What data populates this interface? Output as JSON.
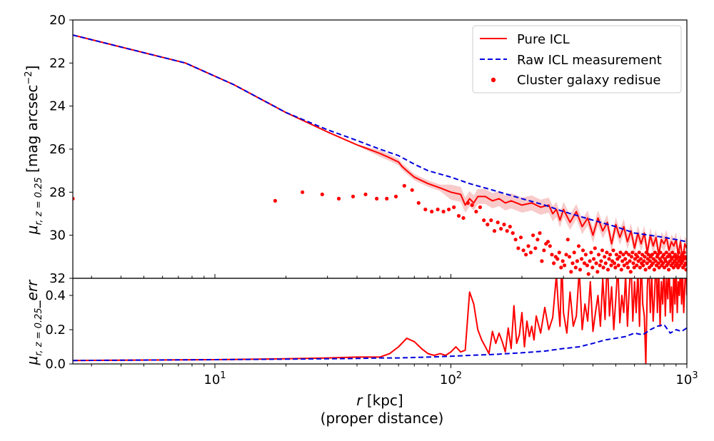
{
  "colors": {
    "pure_icl": "#ff0000",
    "raw_icl": "#0000dd",
    "residue": "#ff0000",
    "band": "#f4a6a6"
  },
  "chart_data": [
    {
      "type": "line",
      "panel": "top",
      "x_scale": "log",
      "y_inverted": true,
      "xlim": [
        2.5,
        1000
      ],
      "ylim": [
        20,
        32
      ],
      "ylabel_main": "μ",
      "ylabel_sub": "r, z = 0.25",
      "ylabel_unit_pre": " [mag arcsec",
      "ylabel_unit_sup": "−2",
      "ylabel_unit_post": "]",
      "y_ticks": [
        "20",
        "22",
        "24",
        "26",
        "28",
        "30",
        "32"
      ],
      "legend": {
        "placement": "top-right",
        "entries": [
          "Pure ICL",
          "Raw ICL measurement",
          "Cluster galaxy redisue"
        ]
      },
      "series": [
        {
          "name": "Pure ICL",
          "style": "solid",
          "x": [
            2.5,
            7.5,
            12,
            20,
            30,
            40,
            50,
            55,
            60,
            62,
            65,
            70,
            80,
            90,
            100,
            110,
            115,
            120,
            125,
            130,
            140,
            150,
            160,
            170,
            180,
            190,
            200,
            220,
            240,
            260,
            270,
            280,
            290,
            300,
            320,
            340,
            360,
            380,
            400,
            420,
            440,
            460,
            480,
            500,
            520,
            540,
            560,
            580,
            600,
            620,
            640,
            660,
            680,
            700,
            720,
            740,
            760,
            780,
            800,
            820,
            840,
            860,
            880,
            900,
            920,
            940,
            960,
            980,
            1000
          ],
          "y": [
            20.7,
            22.0,
            23.0,
            24.3,
            25.2,
            25.8,
            26.2,
            26.4,
            26.6,
            26.8,
            27.0,
            27.3,
            27.6,
            27.8,
            28.0,
            28.1,
            28.6,
            28.3,
            28.5,
            28.2,
            28.2,
            28.4,
            28.3,
            28.5,
            28.4,
            28.5,
            28.6,
            28.5,
            28.7,
            28.6,
            29.0,
            28.8,
            29.3,
            28.8,
            29.4,
            28.9,
            29.6,
            29.2,
            30.0,
            29.2,
            29.8,
            29.4,
            30.4,
            29.5,
            30.1,
            29.6,
            30.3,
            29.8,
            30.6,
            29.9,
            30.4,
            29.9,
            30.8,
            30.0,
            30.5,
            30.1,
            30.9,
            30.2,
            30.4,
            30.1,
            30.7,
            30.3,
            30.5,
            30.2,
            30.9,
            30.3,
            31.2,
            30.4,
            30.6
          ]
        },
        {
          "name": "Raw ICL measurement",
          "style": "dashed",
          "x": [
            2.5,
            7.5,
            12,
            20,
            30,
            40,
            50,
            60,
            70,
            80,
            100,
            120,
            150,
            200,
            250,
            300,
            400,
            500,
            600,
            700,
            800,
            900,
            1000
          ],
          "y": [
            20.7,
            22.0,
            23.0,
            24.3,
            25.1,
            25.6,
            26.0,
            26.3,
            26.7,
            27.0,
            27.3,
            27.6,
            27.9,
            28.3,
            28.6,
            28.9,
            29.3,
            29.6,
            29.9,
            30.0,
            30.1,
            30.2,
            30.3
          ]
        }
      ],
      "scatter": {
        "name": "Cluster galaxy redisue",
        "x": [
          2.5,
          18,
          23.5,
          28.5,
          33.5,
          38.5,
          43.5,
          48.5,
          53.5,
          58.5,
          63.5,
          68.5,
          73,
          78,
          83,
          88,
          93,
          98,
          103,
          108,
          113,
          118,
          123,
          128,
          133,
          138,
          143,
          148,
          153,
          158,
          163,
          168,
          173,
          178,
          183,
          188,
          193,
          198,
          203,
          208,
          213,
          218,
          223,
          228,
          233,
          238,
          243,
          248,
          253,
          258,
          263,
          268,
          273,
          278,
          283,
          288,
          293,
          298,
          303,
          308,
          313,
          318,
          323,
          328,
          333,
          338,
          343,
          348,
          353,
          358,
          363,
          368,
          373,
          378,
          383,
          388,
          393,
          398,
          403,
          408,
          413,
          418,
          423,
          428,
          433,
          438,
          443,
          448,
          453,
          458,
          463,
          468,
          473,
          478,
          483,
          488,
          493,
          498,
          503,
          508,
          513,
          518,
          523,
          528,
          533,
          538,
          543,
          548,
          553,
          558,
          563,
          568,
          573,
          578,
          583,
          588,
          593,
          598,
          603,
          608,
          613,
          618,
          623,
          628,
          633,
          638,
          643,
          648,
          653,
          658,
          663,
          668,
          673,
          678,
          683,
          688,
          693,
          698,
          703,
          708,
          713,
          718,
          723,
          728,
          733,
          738,
          743,
          748,
          753,
          758,
          763,
          768,
          773,
          778,
          783,
          788,
          793,
          798,
          803,
          808,
          813,
          818,
          823,
          828,
          833,
          838,
          843,
          848,
          853,
          858,
          863,
          868,
          873,
          878,
          883,
          888,
          893,
          898,
          903,
          908,
          913,
          918,
          923,
          928,
          933,
          938,
          943,
          948,
          953,
          958,
          963,
          968,
          973,
          978,
          983,
          988,
          993,
          998
        ],
        "y": [
          28.3,
          28.4,
          28.0,
          28.1,
          28.3,
          28.2,
          28.1,
          28.3,
          28.3,
          28.2,
          27.7,
          27.9,
          28.5,
          28.8,
          28.9,
          28.8,
          28.9,
          28.8,
          28.7,
          29.1,
          29.2,
          28.5,
          28.6,
          28.9,
          28.7,
          29.3,
          29.5,
          29.3,
          29.8,
          29.4,
          29.7,
          29.5,
          29.8,
          29.6,
          29.9,
          30.2,
          30.6,
          30.1,
          30.7,
          30.9,
          30.5,
          30.8,
          30.0,
          30.6,
          30.2,
          29.9,
          31.2,
          30.7,
          30.4,
          30.3,
          30.5,
          30.9,
          31.3,
          31.0,
          31.1,
          30.8,
          31.5,
          31.2,
          31.4,
          30.9,
          30.2,
          31.0,
          31.7,
          31.3,
          30.8,
          31.5,
          31.2,
          30.5,
          31.6,
          31.1,
          30.7,
          31.3,
          30.9,
          31.4,
          31.8,
          31.2,
          30.8,
          31.5,
          31.1,
          30.6,
          31.3,
          31.7,
          30.9,
          31.4,
          31.2,
          30.7,
          31.5,
          31.0,
          31.3,
          30.8,
          31.6,
          31.1,
          30.9,
          31.4,
          31.2,
          30.7,
          31.3,
          31.5,
          30.9,
          31.1,
          31.4,
          31.0,
          30.8,
          31.6,
          31.2,
          30.9,
          31.4,
          31.1,
          30.8,
          31.3,
          31.5,
          30.9,
          31.2,
          31.7,
          31.0,
          30.8,
          31.3,
          31.5,
          31.1,
          30.9,
          31.4,
          31.0,
          31.2,
          30.8,
          31.5,
          31.1,
          31.3,
          30.9,
          31.4,
          31.2,
          31.0,
          31.6,
          30.8,
          31.3,
          31.1,
          30.9,
          31.5,
          31.2,
          31.0,
          31.4,
          30.9,
          31.3,
          31.1,
          31.6,
          30.8,
          31.2,
          31.4,
          31.0,
          30.9,
          31.3,
          31.5,
          31.1,
          30.8,
          31.2,
          31.4,
          31.0,
          31.3,
          30.9,
          31.5,
          31.1,
          31.2,
          30.8,
          31.4,
          31.0,
          31.3,
          31.6,
          30.9,
          31.2,
          31.0,
          31.4,
          31.1,
          30.8,
          31.3,
          31.5,
          31.0,
          31.2,
          30.9,
          31.4,
          31.1,
          31.3,
          31.0,
          31.5,
          30.8,
          31.2,
          31.4,
          31.1,
          31.0,
          31.3,
          30.9,
          31.2,
          31.5,
          31.1,
          30.8,
          31.4,
          31.0,
          31.3,
          31.6,
          31.1
        ]
      }
    },
    {
      "type": "line",
      "panel": "bottom",
      "x_scale": "log",
      "xlim": [
        2.5,
        1000
      ],
      "ylim": [
        0.0,
        0.5
      ],
      "ylabel_main": "μ",
      "ylabel_sub": "r, z = 0.25",
      "ylabel_suffix": "_err",
      "y_ticks": [
        "0.0",
        "0.2",
        "0.4"
      ],
      "x_ticks": [
        {
          "base": "10",
          "exp": "1"
        },
        {
          "base": "10",
          "exp": "2"
        },
        {
          "base": "10",
          "exp": "3"
        }
      ],
      "xlabel_var": "r",
      "xlabel_unit": " [kpc]",
      "xlabel_line2": "(proper distance)",
      "series": [
        {
          "name": "Pure ICL",
          "style": "solid",
          "x": [
            2.5,
            10,
            20,
            30,
            40,
            50,
            55,
            60,
            65,
            70,
            75,
            80,
            85,
            90,
            95,
            100,
            105,
            110,
            115,
            120,
            125,
            130,
            135,
            140,
            145,
            150,
            155,
            160,
            165,
            170,
            175,
            180,
            185,
            190,
            195,
            200,
            205,
            210,
            215,
            220,
            225,
            230,
            240,
            250,
            260,
            270,
            280,
            285,
            290,
            295,
            300,
            310,
            320,
            330,
            340,
            350,
            360,
            370,
            380,
            390,
            400,
            410,
            420,
            430,
            440,
            450,
            460,
            470,
            480,
            490,
            500,
            510,
            520,
            530,
            540,
            550,
            560,
            570,
            580,
            590,
            600,
            610,
            620,
            630,
            640,
            650,
            660,
            670,
            680,
            690,
            700,
            710,
            720,
            730,
            740,
            750,
            760,
            770,
            780,
            790,
            800,
            810,
            820,
            830,
            840,
            850,
            860,
            870,
            880,
            890,
            900,
            910,
            920,
            930,
            940,
            950,
            960,
            970,
            980,
            990,
            1000
          ],
          "y": [
            0.02,
            0.025,
            0.03,
            0.035,
            0.04,
            0.04,
            0.06,
            0.1,
            0.15,
            0.13,
            0.09,
            0.06,
            0.05,
            0.06,
            0.05,
            0.07,
            0.1,
            0.07,
            0.08,
            0.42,
            0.35,
            0.2,
            0.14,
            0.1,
            0.06,
            0.19,
            0.12,
            0.18,
            0.13,
            0.07,
            0.21,
            0.09,
            0.34,
            0.12,
            0.17,
            0.3,
            0.1,
            0.25,
            0.16,
            0.22,
            0.14,
            0.28,
            0.18,
            0.33,
            0.2,
            0.27,
            0.52,
            0.35,
            0.22,
            0.6,
            0.3,
            0.18,
            0.42,
            0.22,
            0.28,
            0.55,
            0.2,
            0.35,
            0.25,
            0.48,
            0.19,
            0.3,
            0.4,
            0.22,
            0.5,
            0.26,
            0.62,
            0.28,
            0.45,
            0.2,
            0.38,
            0.58,
            0.24,
            0.4,
            0.3,
            0.52,
            0.22,
            0.44,
            0.6,
            0.25,
            0.48,
            0.3,
            0.55,
            0.22,
            0.62,
            0.35,
            0.28,
            0.0,
            0.45,
            0.6,
            0.3,
            0.52,
            0.25,
            0.4,
            0.65,
            0.3,
            0.55,
            0.22,
            0.48,
            0.35,
            0.6,
            0.28,
            0.5,
            0.38,
            0.62,
            0.3,
            0.45,
            0.25,
            0.55,
            0.35,
            0.58,
            0.3,
            0.48,
            0.4,
            0.62,
            0.35,
            0.52,
            0.3,
            0.45,
            0.6,
            0.4
          ]
        },
        {
          "name": "Raw ICL measurement",
          "style": "dashed",
          "x": [
            2.5,
            10,
            20,
            30,
            40,
            50,
            60,
            80,
            100,
            120,
            150,
            200,
            250,
            300,
            350,
            400,
            450,
            500,
            550,
            600,
            650,
            700,
            750,
            800,
            850,
            900,
            950,
            1000
          ],
          "y": [
            0.02,
            0.025,
            0.028,
            0.03,
            0.032,
            0.035,
            0.035,
            0.04,
            0.045,
            0.05,
            0.055,
            0.065,
            0.075,
            0.09,
            0.1,
            0.12,
            0.14,
            0.15,
            0.16,
            0.18,
            0.17,
            0.2,
            0.22,
            0.23,
            0.18,
            0.2,
            0.19,
            0.21
          ]
        }
      ]
    }
  ]
}
